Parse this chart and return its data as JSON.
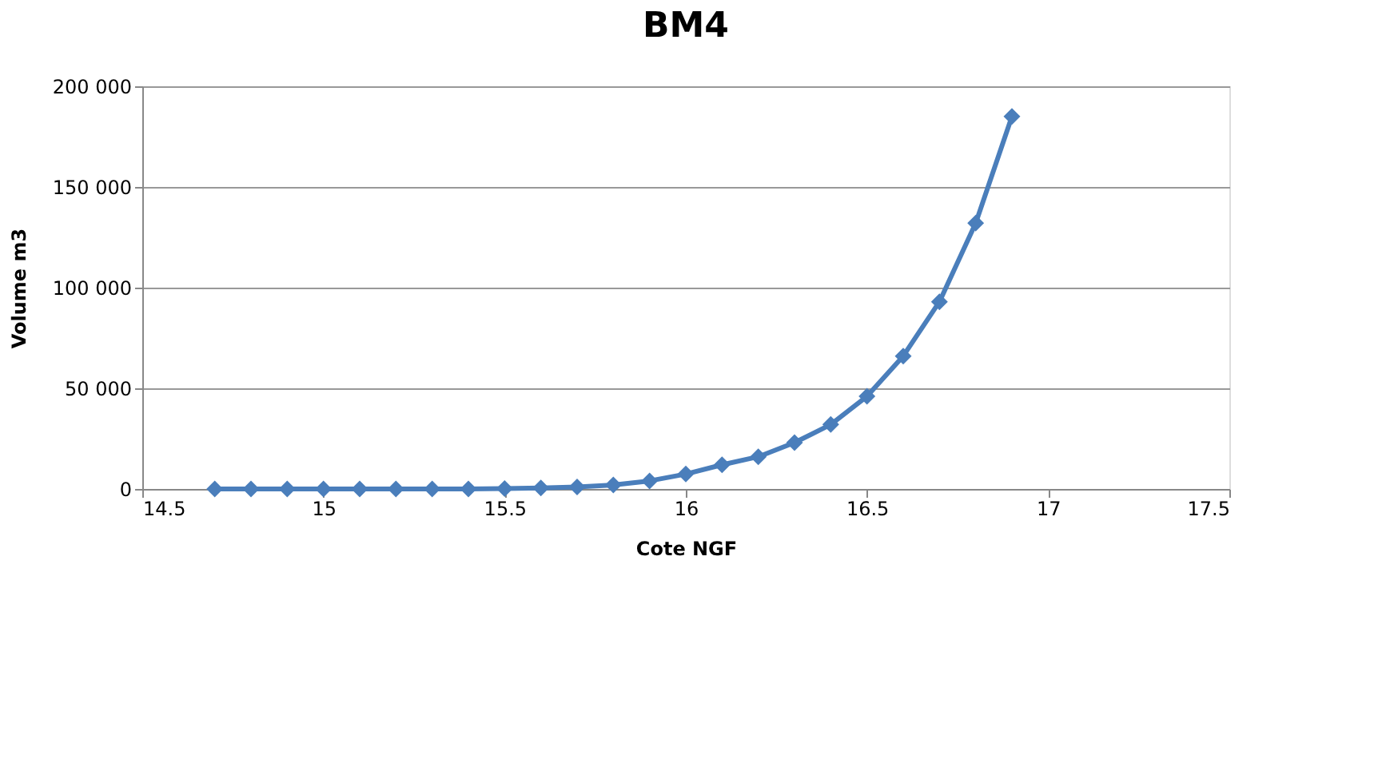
{
  "chart_data": {
    "type": "line",
    "title": "BM4",
    "xlabel": "Cote NGF",
    "ylabel": "Volume m3",
    "x": [
      14.7,
      14.8,
      14.9,
      15.0,
      15.1,
      15.2,
      15.3,
      15.4,
      15.5,
      15.6,
      15.7,
      15.8,
      15.9,
      16.0,
      16.1,
      16.2,
      16.3,
      16.4,
      16.5,
      16.6,
      16.7,
      16.8,
      16.9
    ],
    "series": [
      {
        "color": "#4a7ebb",
        "values": [
          0,
          0,
          0,
          0,
          0,
          0,
          0,
          0,
          200,
          500,
          1000,
          2000,
          4000,
          7400,
          12000,
          16000,
          23000,
          32000,
          46000,
          66000,
          93000,
          132000,
          185000
        ]
      }
    ],
    "xlim": [
      14.5,
      17.5
    ],
    "xticks": [
      14.5,
      15,
      15.5,
      16,
      16.5,
      17,
      17.5
    ],
    "ylim": [
      0,
      200000
    ],
    "yticks": [
      {
        "value": 0,
        "label": "0"
      },
      {
        "value": 50000,
        "label": "50 000"
      },
      {
        "value": 100000,
        "label": "100 000"
      },
      {
        "value": 150000,
        "label": "150 000"
      },
      {
        "value": 200000,
        "label": "200 000"
      }
    ],
    "grid": "y",
    "marker": "diamond",
    "line_style": "solid",
    "legend": false
  }
}
